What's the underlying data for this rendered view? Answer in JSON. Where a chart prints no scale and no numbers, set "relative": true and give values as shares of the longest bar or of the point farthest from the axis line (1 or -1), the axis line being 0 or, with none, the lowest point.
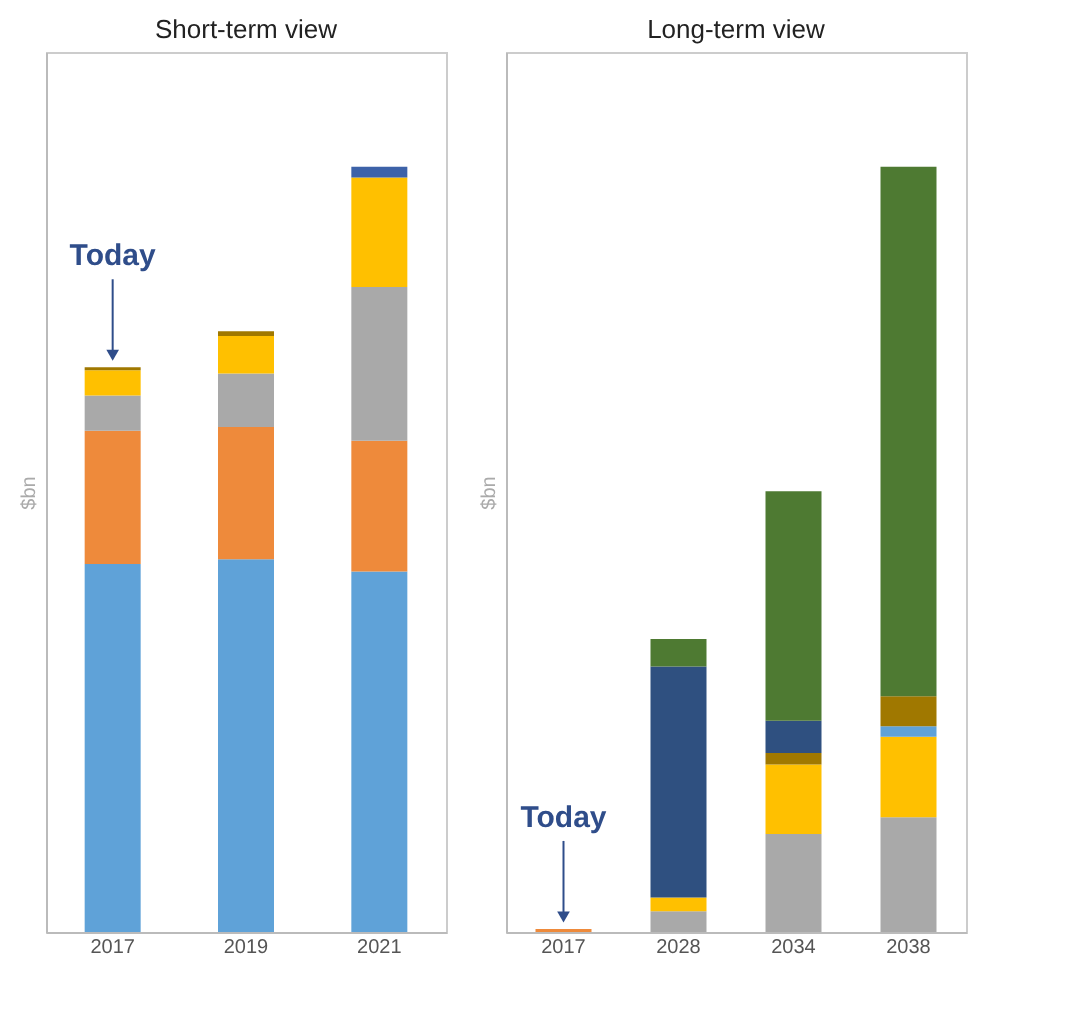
{
  "chart_data": [
    {
      "type": "bar",
      "title": "Short-term view",
      "ylabel": "$bn",
      "stacked": true,
      "relative": true,
      "legend": false,
      "categories": [
        "2017",
        "2019",
        "2021"
      ],
      "series": [
        {
          "color": "#5fa2d8",
          "values": [
            0.481,
            0.487,
            0.471
          ]
        },
        {
          "color": "#ee8a3b",
          "values": [
            0.174,
            0.173,
            0.171
          ]
        },
        {
          "color": "#a9a9a9",
          "values": [
            0.046,
            0.07,
            0.201
          ]
        },
        {
          "color": "#ffc000",
          "values": [
            0.033,
            0.049,
            0.143
          ]
        },
        {
          "color": "#a07800",
          "values": [
            0.004,
            0.006,
            null
          ]
        },
        {
          "color": "#3d62a8",
          "values": [
            null,
            null,
            0.014
          ]
        }
      ],
      "annotations": [
        {
          "text": "Today",
          "x": "2017",
          "y": 0.738
        }
      ]
    },
    {
      "type": "bar",
      "title": "Long-term view",
      "ylabel": "$bn",
      "stacked": true,
      "relative": true,
      "legend": false,
      "categories": [
        "2017",
        "2028",
        "2034",
        "2038"
      ],
      "series": [
        {
          "color": "#ee8a3b",
          "values": [
            0.004,
            null,
            null,
            null
          ]
        },
        {
          "color": "#a9a9a9",
          "values": [
            null,
            0.027,
            0.128,
            0.15
          ]
        },
        {
          "color": "#ffc000",
          "values": [
            null,
            0.018,
            0.091,
            0.105
          ]
        },
        {
          "color": "#5fa2d8",
          "values": [
            null,
            null,
            null,
            0.014
          ]
        },
        {
          "color": "#a07800",
          "values": [
            null,
            null,
            0.015,
            0.039
          ]
        },
        {
          "color": "#2f5080",
          "values": [
            null,
            0.302,
            0.042,
            null
          ]
        },
        {
          "color": "#4e7a32",
          "values": [
            null,
            0.036,
            0.3,
            0.692
          ]
        }
      ],
      "annotations": [
        {
          "text": "Today",
          "x": "2017",
          "y": 0.004
        }
      ]
    }
  ]
}
